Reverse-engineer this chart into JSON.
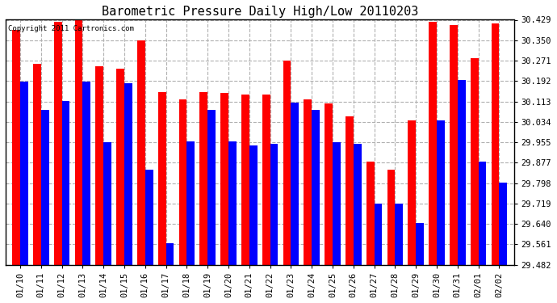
{
  "title": "Barometric Pressure Daily High/Low 20110203",
  "copyright": "Copyright 2011 Cartronics.com",
  "dates": [
    "01/10",
    "01/11",
    "01/12",
    "01/13",
    "01/14",
    "01/15",
    "01/16",
    "01/17",
    "01/18",
    "01/19",
    "01/20",
    "01/21",
    "01/22",
    "01/23",
    "01/24",
    "01/25",
    "01/26",
    "01/27",
    "01/28",
    "01/29",
    "01/30",
    "01/31",
    "02/01",
    "02/02"
  ],
  "high": [
    30.39,
    30.26,
    30.42,
    30.44,
    30.25,
    30.24,
    30.35,
    30.15,
    30.12,
    30.15,
    30.145,
    30.14,
    30.14,
    30.27,
    30.12,
    30.105,
    30.055,
    29.88,
    29.85,
    30.04,
    30.42,
    30.41,
    30.28,
    30.415
  ],
  "low": [
    30.19,
    30.08,
    30.115,
    30.19,
    29.955,
    30.185,
    29.85,
    29.565,
    29.96,
    30.08,
    29.96,
    29.945,
    29.95,
    30.11,
    30.08,
    29.955,
    29.95,
    29.72,
    29.72,
    29.645,
    30.04,
    30.195,
    29.88,
    29.8
  ],
  "ylim_min": 29.482,
  "ylim_max": 30.429,
  "yticks": [
    29.482,
    29.561,
    29.64,
    29.719,
    29.798,
    29.877,
    29.955,
    30.034,
    30.113,
    30.192,
    30.271,
    30.35,
    30.429
  ],
  "high_color": "#ff0000",
  "low_color": "#0000ff",
  "bg_color": "#ffffff",
  "grid_color": "#b0b0b0",
  "title_fontsize": 11,
  "bar_width": 0.38,
  "figsize": [
    6.9,
    3.75
  ],
  "dpi": 100
}
